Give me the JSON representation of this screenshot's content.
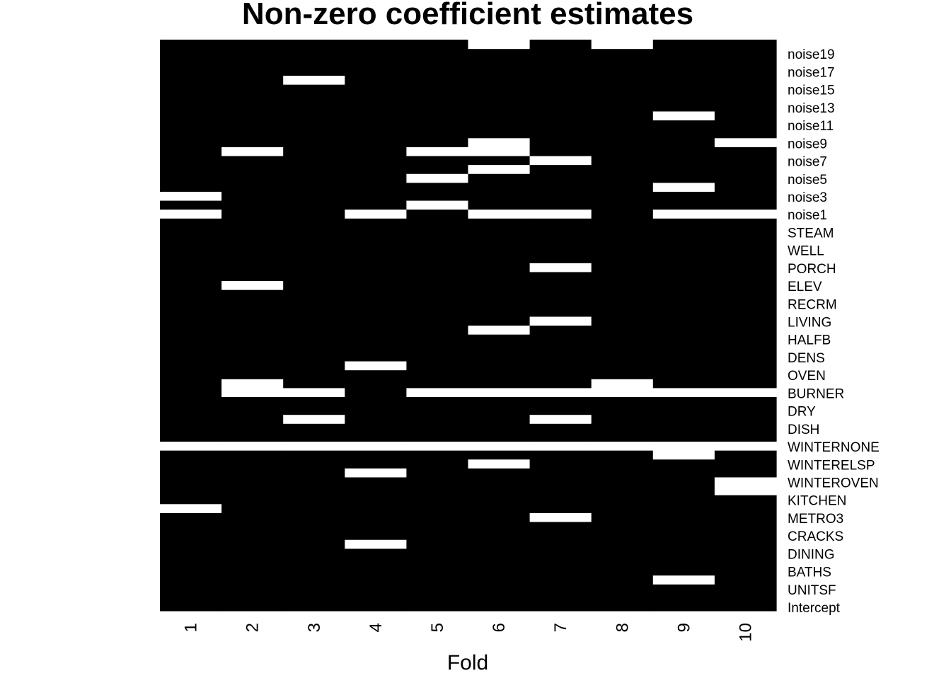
{
  "chart_data": {
    "type": "heatmap",
    "title": "Non-zero coefficient estimates",
    "xlabel": "Fold",
    "ylabel": "",
    "colors": {
      "nonzero": "#000000",
      "zero": "#ffffff"
    },
    "x": [
      "1",
      "2",
      "3",
      "4",
      "5",
      "6",
      "7",
      "8",
      "9",
      "10"
    ],
    "rows": [
      "Intercept",
      "",
      "UNITSF",
      "",
      "BATHS",
      "",
      "DINING",
      "",
      "CRACKS",
      "",
      "METRO3",
      "",
      "KITCHEN",
      "",
      "WINTEROVEN",
      "",
      "WINTERELSP",
      "",
      "WINTERNONE",
      "",
      "DISH",
      "",
      "DRY",
      "",
      "BURNER",
      "",
      "OVEN",
      "",
      "DENS",
      "",
      "HALFB",
      "",
      "LIVING",
      "",
      "RECRM",
      "",
      "ELEV",
      "",
      "PORCH",
      "",
      "WELL",
      "",
      "STEAM",
      "",
      "noise1",
      "",
      "noise3",
      "",
      "noise5",
      "",
      "noise7",
      "",
      "noise9",
      "",
      "noise11",
      "",
      "noise13",
      "",
      "noise15",
      "",
      "noise17",
      "",
      "noise19",
      ""
    ],
    "zero_cells": {
      "1": [
        11,
        44,
        46
      ],
      "2": [
        24,
        25,
        36,
        51
      ],
      "3": [
        21,
        24,
        59
      ],
      "4": [
        7,
        15,
        27,
        44
      ],
      "5": [
        24,
        45,
        48,
        51
      ],
      "6": [
        16,
        24,
        31,
        44,
        49,
        51,
        52,
        63
      ],
      "7": [
        10,
        21,
        24,
        32,
        38,
        44,
        50
      ],
      "8": [
        24,
        25,
        63
      ],
      "9": [
        3,
        17,
        24,
        44,
        47,
        55
      ],
      "10": [
        13,
        14,
        24,
        44,
        52
      ]
    },
    "full_zero_rows": [
      18
    ],
    "cell_meaning": "black = non-zero coefficient, white = zero"
  }
}
